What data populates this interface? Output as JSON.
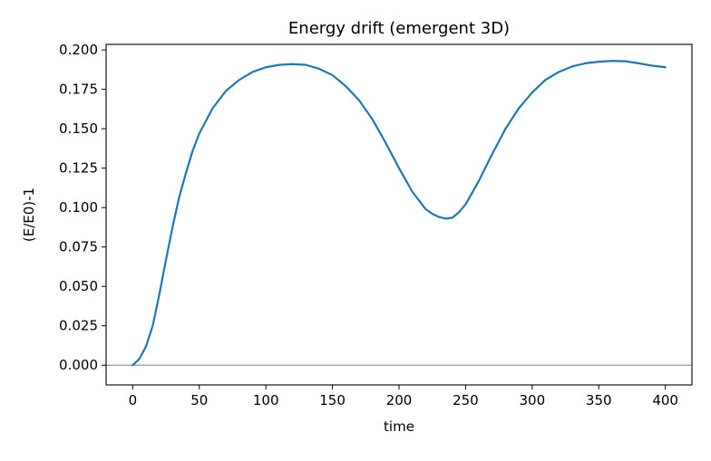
{
  "chart_data": {
    "type": "line",
    "title": "Energy drift (emergent 3D)",
    "xlabel": "time",
    "ylabel": "(E/E0)-1",
    "xlim": [
      -20,
      420
    ],
    "ylim": [
      -0.0125,
      0.2035
    ],
    "xticks": [
      0,
      50,
      100,
      150,
      200,
      250,
      300,
      350,
      400
    ],
    "xtick_labels": [
      "0",
      "50",
      "100",
      "150",
      "200",
      "250",
      "300",
      "350",
      "400"
    ],
    "yticks": [
      0.0,
      0.025,
      0.05,
      0.075,
      0.1,
      0.125,
      0.15,
      0.175,
      0.2
    ],
    "ytick_labels": [
      "0.000",
      "0.025",
      "0.050",
      "0.075",
      "0.100",
      "0.125",
      "0.150",
      "0.175",
      "0.200"
    ],
    "grid": false,
    "reference_line": {
      "y": 0.0,
      "color": "#999999"
    },
    "series": [
      {
        "color": "#1f77b4",
        "x": [
          0,
          5,
          10,
          15,
          20,
          25,
          30,
          35,
          40,
          45,
          50,
          60,
          70,
          80,
          90,
          100,
          110,
          120,
          130,
          140,
          150,
          160,
          170,
          180,
          190,
          200,
          210,
          220,
          225,
          230,
          235,
          240,
          245,
          250,
          260,
          270,
          280,
          290,
          300,
          310,
          320,
          330,
          340,
          350,
          360,
          370,
          380,
          390,
          400
        ],
        "y": [
          0.0,
          0.004,
          0.012,
          0.025,
          0.045,
          0.067,
          0.088,
          0.107,
          0.122,
          0.136,
          0.147,
          0.163,
          0.174,
          0.181,
          0.186,
          0.189,
          0.1905,
          0.191,
          0.1905,
          0.188,
          0.184,
          0.177,
          0.168,
          0.156,
          0.141,
          0.125,
          0.11,
          0.099,
          0.096,
          0.094,
          0.093,
          0.0935,
          0.097,
          0.102,
          0.117,
          0.134,
          0.15,
          0.163,
          0.173,
          0.181,
          0.186,
          0.1895,
          0.1915,
          0.1925,
          0.193,
          0.1928,
          0.1915,
          0.19,
          0.189
        ]
      }
    ]
  }
}
